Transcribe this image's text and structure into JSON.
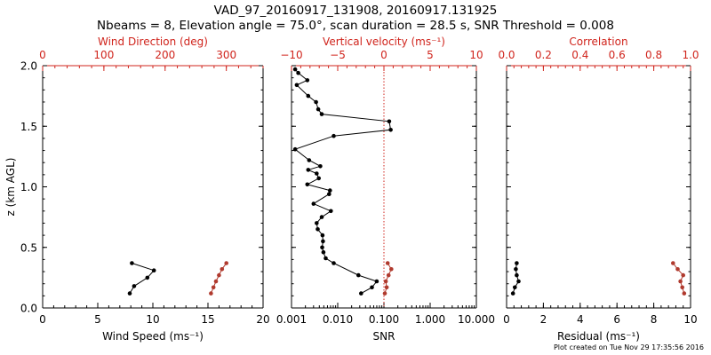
{
  "title": "VAD_97_20160917_131908, 20160917.131925",
  "subtitle": "Nbeams = 8, Elevation angle = 75.0°, scan duration = 28.5 s, SNR Threshold = 0.008",
  "footer": "Plot created on Tue Nov 29 17:35:56 2016",
  "colors": {
    "black": "#000000",
    "red": "#d0241c",
    "red_points": "#b03a2e"
  },
  "chart_data": [
    {
      "type": "line",
      "panel": "left",
      "ylabel": "z (km AGL)",
      "ylim": [
        0.0,
        2.0
      ],
      "y_ticks": [
        "0.0",
        "0.5",
        "1.0",
        "1.5",
        "2.0"
      ],
      "xlabel": "Wind Speed (ms⁻¹)",
      "xlim": [
        0,
        20
      ],
      "x_ticks": [
        "0",
        "5",
        "10",
        "15",
        "20"
      ],
      "x2label": "Wind Direction (deg)",
      "x2lim": [
        0,
        360
      ],
      "x2_ticks": [
        "0",
        "100",
        "200",
        "300"
      ],
      "series": [
        {
          "axis": "bottom",
          "color": "black",
          "x": [
            7.9,
            8.3,
            9.5,
            10.1,
            8.1
          ],
          "y": [
            0.12,
            0.18,
            0.25,
            0.31,
            0.37
          ]
        },
        {
          "axis": "top",
          "color": "red",
          "x": [
            275,
            279,
            283,
            288,
            293,
            300
          ],
          "y": [
            0.12,
            0.17,
            0.22,
            0.27,
            0.32,
            0.37
          ]
        }
      ]
    },
    {
      "type": "line",
      "panel": "middle",
      "xlabel": "SNR",
      "xscale": "log",
      "xlim": [
        0.001,
        10.0
      ],
      "x_ticks": [
        "0.001",
        "0.010",
        "0.100",
        "1.000",
        "10.000"
      ],
      "x2label": "Vertical velocity (ms⁻¹)",
      "x2lim": [
        -10,
        10
      ],
      "x2_ticks": [
        "−10",
        "−5",
        "0",
        "5",
        "10"
      ],
      "reference_line": {
        "axis": "top",
        "x": 0,
        "style": "dotted",
        "color": "red"
      },
      "series": [
        {
          "axis": "bottom",
          "color": "black",
          "x": [
            0.032,
            0.055,
            0.07,
            0.028,
            0.0082,
            0.0055,
            0.0049,
            0.0046,
            0.0048,
            0.0047,
            0.0037,
            0.0035,
            0.0045,
            0.0071,
            0.003,
            0.0065,
            0.0068,
            0.0022,
            0.0039,
            0.0035,
            0.0023,
            0.0042,
            0.0024,
            0.0012,
            0.0082,
            0.14,
            0.13,
            0.0045,
            0.0038,
            0.0034,
            0.0023,
            0.0013,
            0.0022,
            0.0014,
            0.0012
          ],
          "y": [
            0.12,
            0.17,
            0.22,
            0.27,
            0.37,
            0.41,
            0.46,
            0.5,
            0.55,
            0.6,
            0.65,
            0.7,
            0.75,
            0.8,
            0.86,
            0.94,
            0.97,
            1.02,
            1.07,
            1.11,
            1.14,
            1.17,
            1.22,
            1.31,
            1.42,
            1.47,
            1.54,
            1.6,
            1.64,
            1.7,
            1.75,
            1.84,
            1.88,
            1.94,
            1.97
          ]
        },
        {
          "axis": "top",
          "color": "red",
          "x": [
            0.1,
            0.3,
            0.2,
            0.5,
            0.8,
            0.4
          ],
          "y": [
            0.12,
            0.17,
            0.22,
            0.27,
            0.32,
            0.37
          ]
        }
      ]
    },
    {
      "type": "line",
      "panel": "right",
      "xlabel": "Residual (ms⁻¹)",
      "xlim": [
        0,
        10
      ],
      "x_ticks": [
        "0",
        "2",
        "4",
        "6",
        "8",
        "10"
      ],
      "x2label": "Correlation",
      "x2lim": [
        0.0,
        1.0
      ],
      "x2_ticks": [
        "0.0",
        "0.2",
        "0.4",
        "0.6",
        "0.8",
        "1.0"
      ],
      "series": [
        {
          "axis": "bottom",
          "color": "black",
          "x": [
            0.35,
            0.45,
            0.65,
            0.55,
            0.5,
            0.55
          ],
          "y": [
            0.12,
            0.17,
            0.22,
            0.27,
            0.32,
            0.37
          ]
        },
        {
          "axis": "top",
          "color": "red",
          "x": [
            0.965,
            0.955,
            0.945,
            0.96,
            0.93,
            0.905
          ],
          "y": [
            0.12,
            0.17,
            0.22,
            0.27,
            0.32,
            0.37
          ]
        }
      ]
    }
  ]
}
